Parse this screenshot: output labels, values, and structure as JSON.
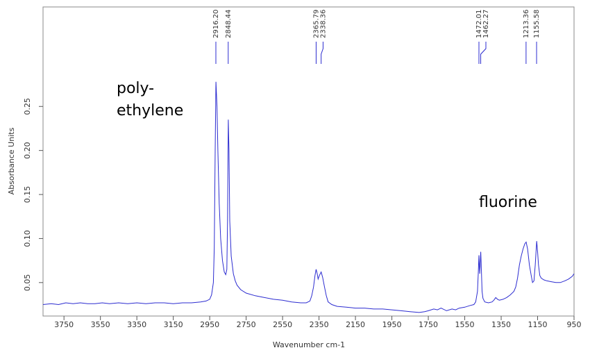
{
  "chart_data": {
    "type": "line",
    "xlabel": "Wavenumber cm-1",
    "ylabel": "Absorbance Units",
    "xlim": [
      3865,
      950
    ],
    "ylim": [
      0.012,
      0.363
    ],
    "xticks": [
      3750,
      3550,
      3350,
      3150,
      2950,
      2750,
      2550,
      2350,
      2150,
      1950,
      1750,
      1550,
      1350,
      1150,
      950
    ],
    "yticks": [
      0.05,
      {
        "value": 0.1,
        "label": "0.10"
      },
      0.15,
      {
        "value": 0.2,
        "label": "0.20"
      },
      0.25
    ],
    "x": [
      3865,
      3820,
      3780,
      3740,
      3700,
      3660,
      3620,
      3580,
      3540,
      3500,
      3450,
      3400,
      3350,
      3300,
      3250,
      3200,
      3150,
      3100,
      3050,
      3000,
      2970,
      2950,
      2940,
      2930,
      2925,
      2920,
      2916,
      2910,
      2905,
      2898,
      2890,
      2880,
      2870,
      2862,
      2856,
      2852,
      2848,
      2844,
      2840,
      2832,
      2820,
      2810,
      2800,
      2780,
      2750,
      2700,
      2650,
      2600,
      2550,
      2500,
      2450,
      2420,
      2400,
      2390,
      2380,
      2372,
      2366,
      2360,
      2355,
      2348,
      2338,
      2330,
      2320,
      2310,
      2300,
      2280,
      2250,
      2200,
      2150,
      2100,
      2050,
      2000,
      1950,
      1900,
      1850,
      1800,
      1770,
      1750,
      1720,
      1700,
      1680,
      1650,
      1620,
      1600,
      1580,
      1550,
      1520,
      1500,
      1490,
      1480,
      1476,
      1472,
      1468,
      1465,
      1462,
      1458,
      1455,
      1450,
      1440,
      1420,
      1400,
      1390,
      1380,
      1370,
      1360,
      1340,
      1320,
      1300,
      1280,
      1270,
      1260,
      1250,
      1240,
      1230,
      1220,
      1213,
      1205,
      1195,
      1185,
      1178,
      1170,
      1163,
      1155,
      1150,
      1145,
      1138,
      1130,
      1115,
      1100,
      1075,
      1050,
      1025,
      1000,
      980,
      960,
      950
    ],
    "series": [
      {
        "name": "spectrum",
        "color": "#2b2bd0",
        "values": [
          0.025,
          0.026,
          0.025,
          0.027,
          0.026,
          0.027,
          0.026,
          0.026,
          0.027,
          0.026,
          0.027,
          0.026,
          0.027,
          0.026,
          0.027,
          0.027,
          0.026,
          0.027,
          0.027,
          0.028,
          0.029,
          0.031,
          0.036,
          0.05,
          0.09,
          0.2,
          0.278,
          0.25,
          0.2,
          0.14,
          0.1,
          0.075,
          0.062,
          0.059,
          0.065,
          0.12,
          0.235,
          0.2,
          0.12,
          0.08,
          0.06,
          0.052,
          0.047,
          0.042,
          0.038,
          0.035,
          0.033,
          0.031,
          0.03,
          0.028,
          0.027,
          0.027,
          0.029,
          0.035,
          0.045,
          0.058,
          0.065,
          0.06,
          0.054,
          0.058,
          0.062,
          0.056,
          0.045,
          0.035,
          0.028,
          0.025,
          0.023,
          0.022,
          0.021,
          0.021,
          0.02,
          0.02,
          0.019,
          0.018,
          0.017,
          0.016,
          0.017,
          0.018,
          0.02,
          0.019,
          0.021,
          0.018,
          0.02,
          0.019,
          0.021,
          0.022,
          0.024,
          0.025,
          0.028,
          0.04,
          0.06,
          0.081,
          0.06,
          0.07,
          0.085,
          0.06,
          0.04,
          0.032,
          0.028,
          0.027,
          0.028,
          0.03,
          0.033,
          0.031,
          0.03,
          0.031,
          0.033,
          0.036,
          0.04,
          0.045,
          0.055,
          0.07,
          0.08,
          0.088,
          0.094,
          0.096,
          0.088,
          0.07,
          0.058,
          0.05,
          0.052,
          0.07,
          0.097,
          0.085,
          0.07,
          0.058,
          0.055,
          0.053,
          0.052,
          0.051,
          0.05,
          0.05,
          0.052,
          0.054,
          0.057,
          0.06
        ]
      }
    ],
    "peaks": [
      {
        "value": 2916.2,
        "label": "2916.20"
      },
      {
        "value": 2848.44,
        "label": "2848.44"
      },
      {
        "value": 2365.79,
        "label": "2365.79"
      },
      {
        "value": 2338.36,
        "label": "2338.36"
      },
      {
        "value": 1472.01,
        "label": "1472.01"
      },
      {
        "value": 1462.27,
        "label": "1462.27"
      },
      {
        "value": 1213.36,
        "label": "1213.36"
      },
      {
        "value": 1155.58,
        "label": "1155.58"
      }
    ],
    "annotations": [
      "poly-",
      "ethylene",
      "fluorine"
    ]
  }
}
